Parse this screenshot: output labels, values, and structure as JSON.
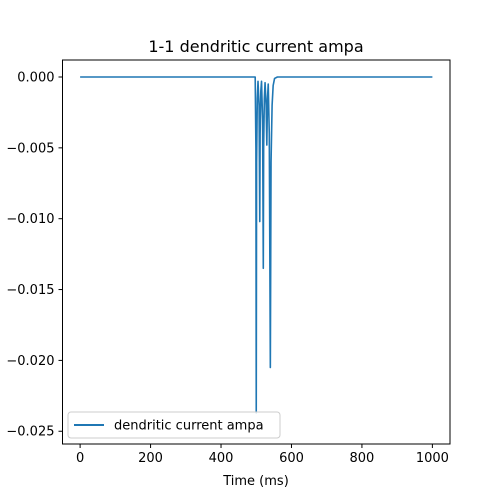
{
  "chart_data": {
    "type": "line",
    "title": "1-1 dendritic current ampa",
    "xlabel": "Time (ms)",
    "ylabel": "",
    "xlim": [
      -50,
      1050
    ],
    "ylim": [
      -0.0259,
      0.0012
    ],
    "xticks": [
      0,
      200,
      400,
      600,
      800,
      1000
    ],
    "xtick_labels": [
      "0",
      "200",
      "400",
      "600",
      "800",
      "1000"
    ],
    "yticks": [
      0.0,
      -0.005,
      -0.01,
      -0.015,
      -0.02,
      -0.025
    ],
    "ytick_labels": [
      "0.000",
      "−0.005",
      "−0.010",
      "−0.015",
      "−0.020",
      "−0.025"
    ],
    "grid": false,
    "legend_position": "lower-left",
    "series": [
      {
        "name": "dendritic current ampa",
        "color": "#1f77b4",
        "x": [
          0,
          497,
          499,
          500,
          501,
          503,
          505,
          508,
          510,
          511,
          513,
          515,
          518,
          520,
          521,
          523,
          525,
          528,
          530,
          532,
          534,
          537,
          540,
          542,
          545,
          548,
          552,
          560,
          1000
        ],
        "y": [
          0,
          0,
          -0.005,
          -0.0237,
          -0.006,
          -0.0015,
          -0.0003,
          -0.002,
          -0.0102,
          -0.004,
          -0.001,
          -0.0003,
          -0.003,
          -0.0135,
          -0.005,
          -0.0015,
          -0.0004,
          -0.002,
          -0.0048,
          -0.0015,
          -0.0005,
          -0.004,
          -0.0205,
          -0.006,
          -0.002,
          -0.0006,
          -0.0001,
          0,
          0
        ]
      }
    ]
  }
}
